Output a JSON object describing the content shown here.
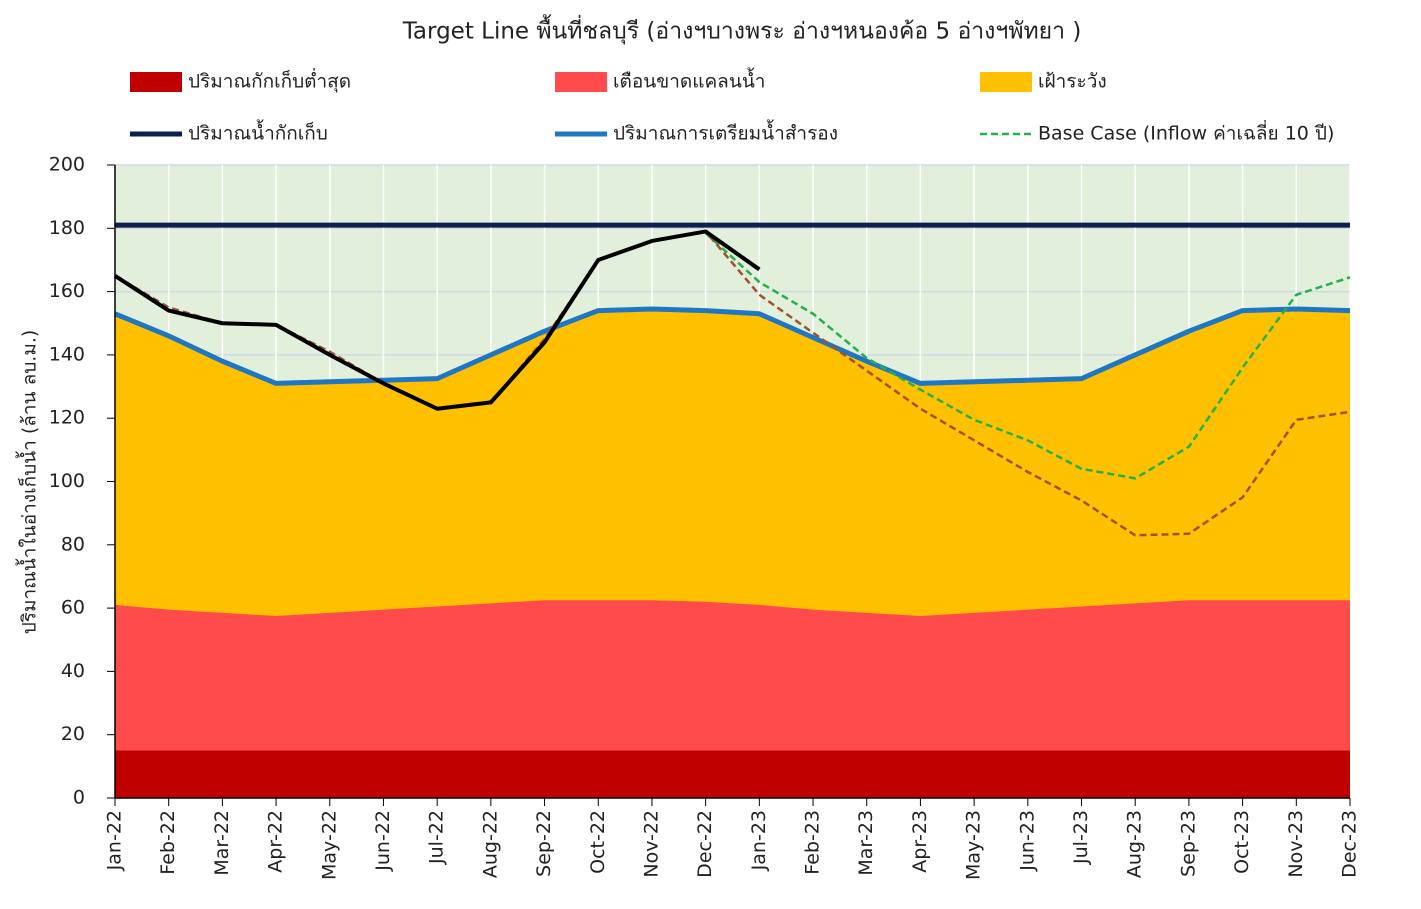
{
  "chart_data": {
    "type": "area-line",
    "title": "Target Line พื้นที่ชลบุรี (อ่างฯบางพระ อ่างฯหนองค้อ 5 อ่างฯพัทยา )",
    "y_label": "ปริมาณน้ำในอ่างเก็บน้ำ (ล้าน ลบ.ม.)",
    "categories": [
      "Jan-22",
      "Feb-22",
      "Mar-22",
      "Apr-22",
      "May-22",
      "Jun-22",
      "Jul-22",
      "Aug-22",
      "Sep-22",
      "Oct-22",
      "Nov-22",
      "Dec-22",
      "Jan-23",
      "Feb-23",
      "Mar-23",
      "Apr-23",
      "May-23",
      "Jun-23",
      "Jul-23",
      "Aug-23",
      "Sep-23",
      "Oct-23",
      "Nov-23",
      "Dec-23"
    ],
    "ylim": [
      0,
      200
    ],
    "yticks": [
      0,
      20,
      40,
      60,
      80,
      100,
      120,
      140,
      160,
      180,
      200
    ],
    "grid": true,
    "plot_background": "#e2efda",
    "series": [
      {
        "name": "ปริมาณกักเก็บต่ำสุด",
        "kind": "area",
        "color": "#c00000",
        "values": [
          15,
          15,
          15,
          15,
          15,
          15,
          15,
          15,
          15,
          15,
          15,
          15,
          15,
          15,
          15,
          15,
          15,
          15,
          15,
          15,
          15,
          15,
          15,
          15
        ]
      },
      {
        "name": "เตือนขาดแคลนน้ำ",
        "kind": "area",
        "color": "#ff4b4b",
        "values": [
          61,
          59.5,
          58.5,
          57.5,
          58.5,
          59.5,
          60.5,
          61.5,
          62.5,
          62.5,
          62.5,
          62,
          61,
          59.5,
          58.5,
          57.5,
          58.5,
          59.5,
          60.5,
          61.5,
          62.5,
          62.5,
          62.5,
          62.5
        ]
      },
      {
        "name": "เฝ้าระวัง",
        "kind": "area",
        "color": "#ffc000",
        "values": [
          153,
          146,
          138,
          131,
          131.5,
          132,
          132.5,
          140,
          147.5,
          154,
          154.5,
          154,
          153,
          145.5,
          138,
          131,
          131.5,
          132,
          132.5,
          140,
          147.5,
          154,
          154.5,
          154
        ]
      },
      {
        "name": "ปริมาณน้ำกักเก็บ",
        "kind": "line",
        "color": "#0d1f4f",
        "width": 5,
        "values": [
          181,
          181,
          181,
          181,
          181,
          181,
          181,
          181,
          181,
          181,
          181,
          181,
          181,
          181,
          181,
          181,
          181,
          181,
          181,
          181,
          181,
          181,
          181,
          181
        ]
      },
      {
        "name": "ปริมาณการเตรียมน้ำสำรอง",
        "kind": "line",
        "color": "#1f77c4",
        "width": 5,
        "values": [
          153,
          146,
          138,
          131,
          131.5,
          132,
          132.5,
          140,
          147.5,
          154,
          154.5,
          154,
          153,
          145.5,
          138,
          131,
          131.5,
          132,
          132.5,
          140,
          147.5,
          154,
          154.5,
          154
        ]
      },
      {
        "name": "Base Case (Inflow ค่าเฉลี่ย 10 ปี)",
        "kind": "line",
        "color": "#22b14c",
        "width": 2.5,
        "dash": true,
        "values": [
          null,
          null,
          null,
          null,
          null,
          null,
          null,
          null,
          null,
          null,
          null,
          178.5,
          163,
          153,
          139,
          129,
          119.5,
          113,
          104,
          101,
          111,
          136,
          159,
          164.5
        ]
      },
      {
        "kind": "line",
        "color": "#a0522d",
        "width": 2.5,
        "dash": true,
        "values": [
          165,
          155,
          150,
          149.5,
          141,
          131,
          123,
          125,
          145,
          170,
          176,
          179,
          159,
          147,
          135,
          123,
          113,
          103,
          94,
          83,
          83.5,
          95,
          119.5,
          122
        ]
      },
      {
        "kind": "line",
        "color": "#000000",
        "width": 4,
        "values": [
          165,
          154,
          150,
          149.5,
          140,
          131,
          123,
          125,
          144,
          170,
          176,
          179,
          167,
          null,
          null,
          null,
          null,
          null,
          null,
          null,
          null,
          null,
          null,
          null
        ]
      }
    ]
  }
}
